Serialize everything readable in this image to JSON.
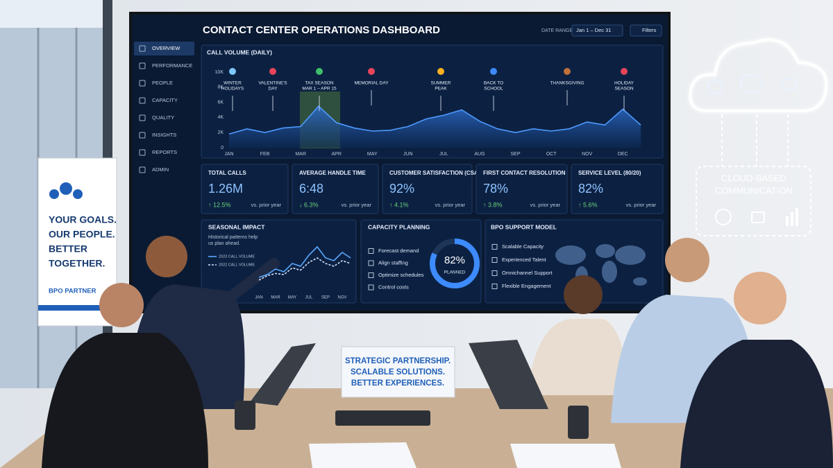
{
  "chart_data": [
    {
      "type": "line",
      "title": "CALL VOLUME (DAILY)",
      "categories": [
        "JAN",
        null,
        "FEB",
        null,
        "MAR",
        null,
        "APR",
        null,
        "MAY",
        null,
        "JUN",
        null,
        "JUL",
        null,
        "AUG",
        null,
        "SEP",
        null,
        "OCT",
        null,
        "NOV",
        null,
        "DEC",
        null
      ],
      "values": [
        1800,
        2500,
        2000,
        2600,
        2800,
        5500,
        3300,
        2600,
        2200,
        2300,
        2800,
        3800,
        4300,
        5000,
        3500,
        2500,
        2000,
        2500,
        2200,
        2500,
        3400,
        3000,
        5100,
        3000
      ],
      "color": "#4f9bff",
      "ylim": [
        0,
        10000
      ],
      "yticks": [
        0,
        {
          "value": 2000,
          "label": "2K"
        },
        {
          "value": 4000,
          "label": "4K"
        },
        {
          "value": 6000,
          "label": "6K"
        },
        {
          "value": 8000,
          "label": "8K"
        },
        {
          "value": 10000,
          "label": "10K"
        }
      ],
      "annotations": [
        {
          "label": [
            "WINTER",
            "HOLIDAYS"
          ]
        },
        {
          "label": [
            "VALENTINE'S",
            "DAY"
          ]
        },
        {
          "label": [
            "TAX SEASON",
            "MAR 1 – APR 15"
          ]
        },
        {
          "label": [
            "MEMORIAL DAY"
          ]
        },
        {
          "label": [
            "SUMMER",
            "PEAK"
          ]
        },
        {
          "label": [
            "BACK TO",
            "SCHOOL"
          ]
        },
        {
          "label": [
            "THANKSGIVING"
          ]
        },
        {
          "label": [
            "HOLIDAY",
            "SEASON"
          ]
        }
      ]
    },
    {
      "type": "line",
      "title": "SEASONAL IMPACT",
      "subtitle": [
        "Historical patterns help",
        "us plan ahead."
      ],
      "categories": [
        "JAN",
        null,
        "MAR",
        null,
        "MAY",
        null,
        "JUL",
        null,
        "SEP",
        null,
        "NOV",
        null
      ],
      "series": [
        {
          "name": "2023 CALL VOLUME",
          "color": "#5aa8ff",
          "values": [
            2500,
            3000,
            4000,
            3500,
            5000,
            4500,
            6500,
            8000,
            6000,
            5500,
            7000,
            6000
          ]
        },
        {
          "name": "2022 CALL VOLUME",
          "color": "#d6e6ff",
          "values": [
            2000,
            2800,
            3200,
            3000,
            4200,
            3800,
            5200,
            6000,
            5000,
            4500,
            5500,
            5000
          ]
        }
      ],
      "ylim": [
        0,
        10000
      ]
    }
  ],
  "dashboard": {
    "title": "CONTACT CENTER OPERATIONS DASHBOARD",
    "date_range_label": "DATE RANGE",
    "date_range": "Jan 1 – Dec 31",
    "filters": "Filters",
    "nav": [
      "OVERVIEW",
      "PERFORMANCE",
      "PEOPLE",
      "CAPACITY",
      "QUALITY",
      "INSIGHTS",
      "REPORTS",
      "ADMIN"
    ],
    "kpis": [
      {
        "title": "TOTAL CALLS",
        "value": "1.26M",
        "change": "↑ 12.5%",
        "note": "vs. prior year"
      },
      {
        "title": "AVERAGE HANDLE TIME",
        "value": "6:48",
        "change": "↓ 6.3%",
        "note": "vs. prior year"
      },
      {
        "title": "CUSTOMER SATISFACTION (CSAT)",
        "value": "92%",
        "change": "↑ 4.1%",
        "note": "vs. prior year"
      },
      {
        "title": "FIRST CONTACT RESOLUTION",
        "value": "78%",
        "change": "↑ 3.8%",
        "note": "vs. prior year"
      },
      {
        "title": "SERVICE LEVEL (80/20)",
        "value": "82%",
        "change": "↑ 5.6%",
        "note": "vs. prior year"
      }
    ],
    "capacity": {
      "title": "CAPACITY PLANNING",
      "items": [
        "Forecast demand",
        "Align staffing",
        "Optimize schedules",
        "Control costs"
      ],
      "planned_value": 82,
      "planned_label": "82%",
      "planned_text": "PLANNED"
    },
    "bpo": {
      "title": "BPO SUPPORT MODEL",
      "items": [
        "Scalable Capacity",
        "Experienced Talent",
        "Omnichannel Support",
        "Flexible Engagement"
      ]
    }
  },
  "banner": {
    "lines": [
      "YOUR GOALS.",
      "OUR PEOPLE.",
      "BETTER",
      "TOGETHER."
    ],
    "brand": "BPO PARTNER"
  },
  "table_sign": {
    "lines": [
      "STRATEGIC PARTNERSHIP.",
      "SCALABLE SOLUTIONS.",
      "BETTER EXPERIENCES."
    ]
  },
  "cloud": {
    "lines": [
      "CLOUD-BASED",
      "COMMUNICATION"
    ]
  }
}
